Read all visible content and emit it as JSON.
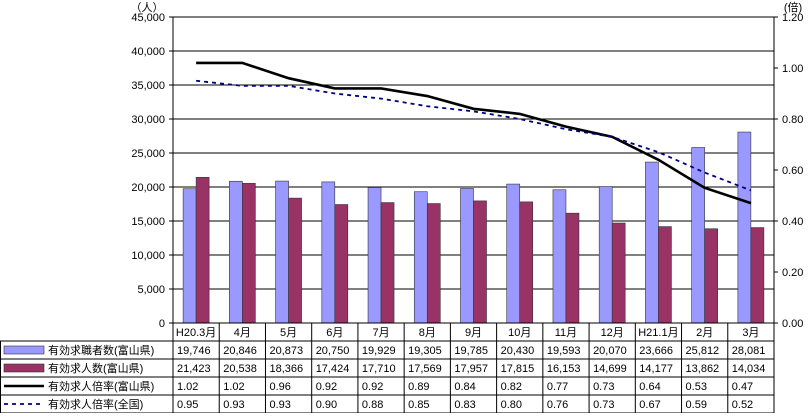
{
  "chart_data": {
    "type": "bar",
    "categories": [
      "H20.3月",
      "4月",
      "5月",
      "6月",
      "7月",
      "8月",
      "9月",
      "10月",
      "11月",
      "12月",
      "H21.1月",
      "2月",
      "3月"
    ],
    "left_axis": {
      "unit": "（人）",
      "ylim": [
        0,
        45000
      ],
      "ticks": [
        "0",
        "5,000",
        "10,000",
        "15,000",
        "20,000",
        "25,000",
        "30,000",
        "35,000",
        "40,000",
        "45,000"
      ]
    },
    "right_axis": {
      "unit": "(倍)",
      "ylim": [
        0,
        1.2
      ],
      "ticks": [
        "0.00",
        "0.20",
        "0.40",
        "0.60",
        "0.80",
        "1.00",
        "1.20"
      ]
    },
    "grid": "horizontal",
    "legend_placement": "table-bottom",
    "series": [
      {
        "name": "有効求職者数(富山県)",
        "kind": "bar",
        "axis": "left",
        "color": "#9999ff",
        "values": [
          19746,
          20846,
          20873,
          20750,
          19929,
          19305,
          19785,
          20430,
          19593,
          20070,
          23666,
          25812,
          28081
        ],
        "labels": [
          "19,746",
          "20,846",
          "20,873",
          "20,750",
          "19,929",
          "19,305",
          "19,785",
          "20,430",
          "19,593",
          "20,070",
          "23,666",
          "25,812",
          "28,081"
        ]
      },
      {
        "name": "有効求人数(富山県)",
        "kind": "bar",
        "axis": "left",
        "color": "#993366",
        "values": [
          21423,
          20538,
          18366,
          17424,
          17710,
          17569,
          17957,
          17815,
          16153,
          14699,
          14177,
          13862,
          14034
        ],
        "labels": [
          "21,423",
          "20,538",
          "18,366",
          "17,424",
          "17,710",
          "17,569",
          "17,957",
          "17,815",
          "16,153",
          "14,699",
          "14,177",
          "13,862",
          "14,034"
        ]
      },
      {
        "name": "有効求人倍率(富山県)",
        "kind": "line",
        "style": "solid",
        "axis": "right",
        "color": "#000000",
        "values": [
          1.02,
          1.02,
          0.96,
          0.92,
          0.92,
          0.89,
          0.84,
          0.82,
          0.77,
          0.73,
          0.64,
          0.53,
          0.47
        ],
        "labels": [
          "1.02",
          "1.02",
          "0.96",
          "0.92",
          "0.92",
          "0.89",
          "0.84",
          "0.82",
          "0.77",
          "0.73",
          "0.64",
          "0.53",
          "0.47"
        ]
      },
      {
        "name": "有効求人倍率(全国)",
        "kind": "line",
        "style": "dashed",
        "axis": "right",
        "color": "#000080",
        "values": [
          0.95,
          0.93,
          0.93,
          0.9,
          0.88,
          0.85,
          0.83,
          0.8,
          0.76,
          0.73,
          0.67,
          0.59,
          0.52
        ],
        "labels": [
          "0.95",
          "0.93",
          "0.93",
          "0.90",
          "0.88",
          "0.85",
          "0.83",
          "0.80",
          "0.76",
          "0.73",
          "0.67",
          "0.59",
          "0.52"
        ]
      }
    ]
  }
}
